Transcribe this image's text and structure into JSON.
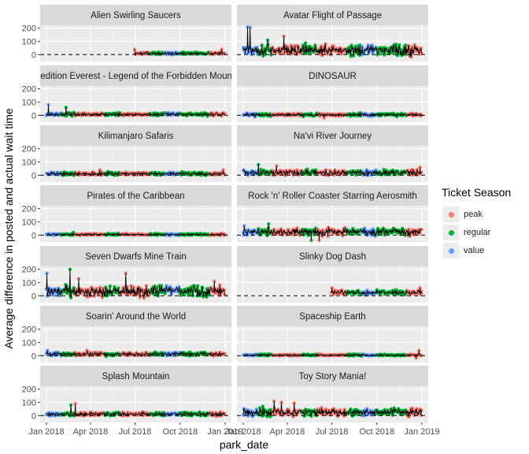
{
  "chart_data": {
    "type": "line",
    "x_axis_label": "park_date",
    "y_axis_label": "Average difference in posted and actual wait time",
    "x_ticks": [
      "Jan 2018",
      "Apr 2018",
      "Jul 2018",
      "Oct 2018",
      "Jan 2019"
    ],
    "x_range": [
      "2018-01-01",
      "2019-01-01"
    ],
    "y_ticks": [
      0,
      100,
      200
    ],
    "y_range": [
      -40,
      210
    ],
    "reference_line": {
      "y": 0,
      "style": "dashed"
    },
    "legend": {
      "title": "Ticket Season",
      "placement": "right",
      "entries": [
        {
          "name": "peak",
          "color": "#F8766D"
        },
        {
          "name": "regular",
          "color": "#00BA38"
        },
        {
          "name": "value",
          "color": "#619CFF"
        }
      ]
    },
    "seasons_by_month": {
      "Jan": "value",
      "Feb": "regular",
      "Mar": "peak",
      "Apr": "peak",
      "May": "regular",
      "Jun": "peak",
      "Jul": "peak",
      "Aug": "regular",
      "Sep": "value",
      "Oct": "regular",
      "Nov": "regular",
      "Dec": "peak"
    },
    "panels": [
      {
        "title": "Alien Swirling Saucers",
        "start": "2018-06-30",
        "end": "2018-12-31",
        "typical": 10,
        "spread": 6,
        "spikes": [
          [
            "2018-06-30",
            40
          ],
          [
            "2018-12-25",
            40
          ]
        ]
      },
      {
        "title": "Avatar Flight of Passage",
        "start": "2018-01-01",
        "end": "2018-12-31",
        "typical": 35,
        "spread": 30,
        "spikes": [
          [
            "2018-01-10",
            210
          ],
          [
            "2018-01-15",
            205
          ],
          [
            "2018-03-25",
            140
          ],
          [
            "2018-02-20",
            110
          ],
          [
            "2018-12-10",
            -20
          ]
        ]
      },
      {
        "title": "Expedition Everest - Legend of the Forbidden Mountain",
        "start": "2018-01-01",
        "end": "2018-12-31",
        "typical": 8,
        "spread": 8,
        "spikes": [
          [
            "2018-01-05",
            80
          ],
          [
            "2018-02-10",
            60
          ]
        ]
      },
      {
        "title": "DINOSAUR",
        "start": "2018-01-01",
        "end": "2018-12-31",
        "typical": 5,
        "spread": 8,
        "spikes": [
          [
            "2018-06-15",
            -20
          ],
          [
            "2018-01-25",
            -12
          ]
        ]
      },
      {
        "title": "Kilimanjaro Safaris",
        "start": "2018-01-01",
        "end": "2018-12-31",
        "typical": 12,
        "spread": 9,
        "spikes": [
          [
            "2018-04-20",
            40
          ],
          [
            "2018-12-28",
            40
          ]
        ]
      },
      {
        "title": "Na'vi River Journey",
        "start": "2018-01-01",
        "end": "2018-12-31",
        "typical": 20,
        "spread": 15,
        "spikes": [
          [
            "2018-02-01",
            80
          ],
          [
            "2018-03-10",
            70
          ],
          [
            "2018-12-28",
            60
          ]
        ]
      },
      {
        "title": "Pirates of the Caribbean",
        "start": "2018-01-01",
        "end": "2018-12-31",
        "typical": 5,
        "spread": 5,
        "spikes": [
          [
            "2018-02-25",
            20
          ]
        ]
      },
      {
        "title": "Rock 'n' Roller Coaster Starring Aerosmith",
        "start": "2018-01-01",
        "end": "2018-12-31",
        "typical": 25,
        "spread": 20,
        "spikes": [
          [
            "2018-01-03",
            70
          ],
          [
            "2018-02-22",
            85
          ],
          [
            "2018-05-20",
            -40
          ],
          [
            "2018-06-05",
            -40
          ]
        ]
      },
      {
        "title": "Seven Dwarfs Mine Train",
        "start": "2018-01-01",
        "end": "2018-12-31",
        "typical": 35,
        "spread": 30,
        "spikes": [
          [
            "2018-01-02",
            170
          ],
          [
            "2018-02-18",
            200
          ],
          [
            "2018-03-08",
            130
          ],
          [
            "2018-06-12",
            170
          ],
          [
            "2018-12-10",
            110
          ]
        ]
      },
      {
        "title": "Slinky Dog Dash",
        "start": "2018-06-30",
        "end": "2018-12-31",
        "typical": 25,
        "spread": 12,
        "spikes": [
          [
            "2018-07-01",
            60
          ],
          [
            "2018-12-28",
            60
          ]
        ]
      },
      {
        "title": "Soarin' Around the World",
        "start": "2018-01-01",
        "end": "2018-12-31",
        "typical": 12,
        "spread": 10,
        "spikes": [
          [
            "2018-01-03",
            40
          ],
          [
            "2018-03-25",
            40
          ]
        ]
      },
      {
        "title": "Spaceship Earth",
        "start": "2018-01-01",
        "end": "2018-12-31",
        "typical": 5,
        "spread": 5,
        "spikes": [
          [
            "2018-12-26",
            40
          ],
          [
            "2018-12-20",
            -18
          ]
        ]
      },
      {
        "title": "Splash Mountain",
        "start": "2018-01-01",
        "end": "2018-12-31",
        "typical": 12,
        "spread": 10,
        "spikes": [
          [
            "2018-03-01",
            90
          ],
          [
            "2018-02-20",
            80
          ]
        ]
      },
      {
        "title": "Toy Story Mania!",
        "start": "2018-01-01",
        "end": "2018-12-31",
        "typical": 25,
        "spread": 20,
        "spikes": [
          [
            "2018-03-05",
            110
          ],
          [
            "2018-03-20",
            100
          ],
          [
            "2018-04-15",
            95
          ],
          [
            "2018-02-10",
            70
          ]
        ]
      }
    ]
  }
}
